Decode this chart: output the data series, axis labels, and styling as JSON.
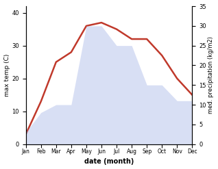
{
  "months": [
    "Jan",
    "Feb",
    "Mar",
    "Apr",
    "May",
    "Jun",
    "Jul",
    "Aug",
    "Sep",
    "Oct",
    "Nov",
    "Dec"
  ],
  "temperature": [
    3,
    13,
    25,
    28,
    36,
    37,
    35,
    32,
    32,
    27,
    20,
    15
  ],
  "precipitation": [
    3,
    8,
    10,
    10,
    30,
    30,
    25,
    25,
    15,
    15,
    11,
    11
  ],
  "temp_color": "#c0392b",
  "precip_fill_color": "#aab8e8",
  "left_ylim": [
    0,
    42
  ],
  "right_ylim": [
    0,
    35
  ],
  "left_yticks": [
    0,
    10,
    20,
    30,
    40
  ],
  "right_yticks": [
    0,
    5,
    10,
    15,
    20,
    25,
    30,
    35
  ],
  "left_ylabel": "max temp (C)",
  "right_ylabel": "med. precipitation (kg/m2)",
  "xlabel": "date (month)",
  "bg_color": "#ffffff",
  "temp_linewidth": 1.8,
  "precip_alpha": 0.45
}
